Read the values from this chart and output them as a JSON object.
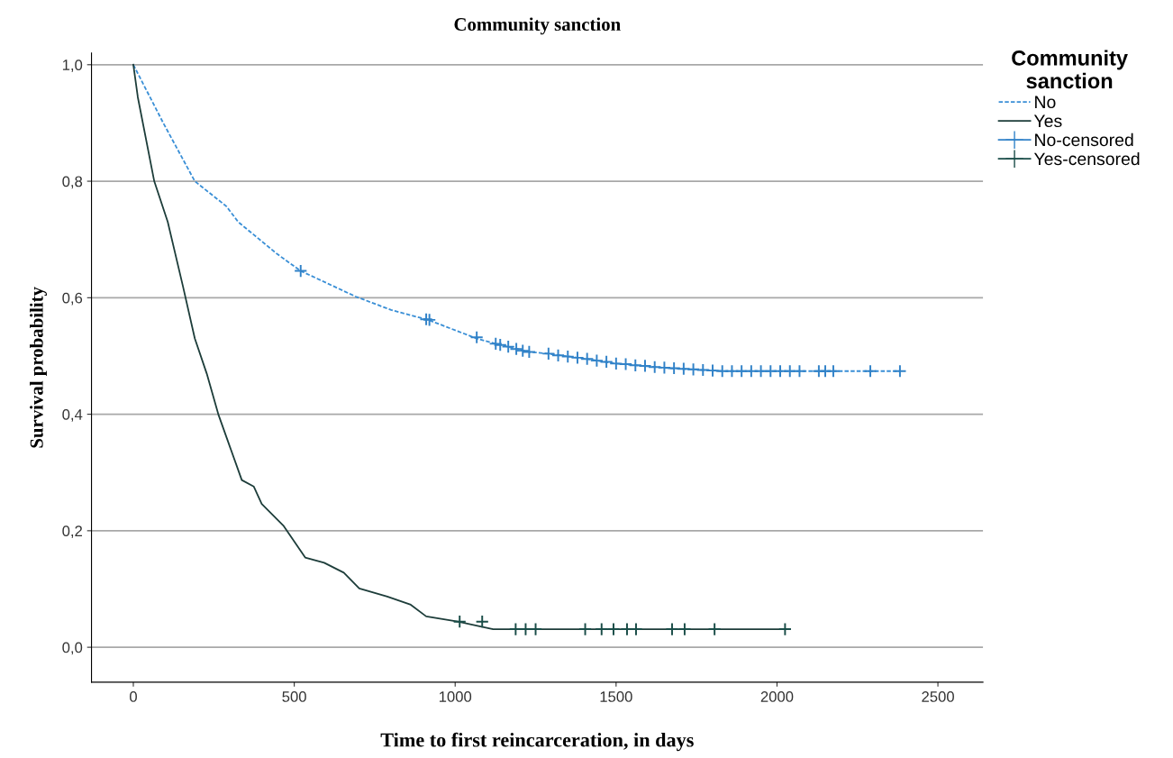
{
  "chart_data": {
    "type": "line",
    "title": "Community sanction",
    "xlabel": "Time to first reincarceration, in days",
    "ylabel": "Survival probability",
    "legend_title": "Community sanction",
    "legend": "top right",
    "grid": "y",
    "xlim": [
      -130,
      2640
    ],
    "ylim": [
      -0.06,
      1.02
    ],
    "xticks": [
      0,
      500,
      1000,
      1500,
      2000,
      2500
    ],
    "yticks": [
      {
        "value": 0.0,
        "label": "0,0"
      },
      {
        "value": 0.2,
        "label": "0,2"
      },
      {
        "value": 0.4,
        "label": "0,4"
      },
      {
        "value": 0.6,
        "label": "0,6"
      },
      {
        "value": 0.8,
        "label": "0,8"
      },
      {
        "value": 1.0,
        "label": "1,0"
      }
    ],
    "series": [
      {
        "name": "No",
        "color": "#3a8fd6",
        "line_style": "dashed",
        "marker": "none",
        "x": [
          0,
          93,
          191,
          289,
          326,
          447,
          520,
          691,
          801,
          916,
          1067,
          1126,
          1230,
          1289,
          1407,
          1500,
          1666,
          1840,
          2087,
          2382
        ],
        "values": [
          1.0,
          0.9,
          0.8,
          0.757,
          0.73,
          0.675,
          0.646,
          0.602,
          0.579,
          0.562,
          0.53,
          0.521,
          0.507,
          0.504,
          0.495,
          0.487,
          0.479,
          0.474,
          0.474,
          0.474
        ]
      },
      {
        "name": "Yes",
        "color": "#1d3d3a",
        "line_style": "solid",
        "marker": "none",
        "x": [
          0,
          14,
          65,
          107,
          154,
          191,
          228,
          264,
          337,
          374,
          399,
          466,
          534,
          593,
          654,
          702,
          789,
          862,
          910,
          1008,
          1118,
          2025
        ],
        "values": [
          1.0,
          0.944,
          0.8,
          0.73,
          0.62,
          0.53,
          0.47,
          0.4,
          0.287,
          0.276,
          0.246,
          0.209,
          0.154,
          0.145,
          0.128,
          0.101,
          0.087,
          0.073,
          0.053,
          0.044,
          0.031,
          0.031
        ]
      },
      {
        "name": "No-censored",
        "type": "scatter",
        "color": "#3182c8",
        "marker": "cross",
        "x": [
          520,
          910,
          920,
          1067,
          1126,
          1140,
          1165,
          1190,
          1210,
          1230,
          1290,
          1320,
          1350,
          1380,
          1410,
          1440,
          1470,
          1500,
          1530,
          1560,
          1590,
          1620,
          1650,
          1680,
          1710,
          1740,
          1770,
          1800,
          1830,
          1860,
          1890,
          1920,
          1950,
          1980,
          2010,
          2040,
          2070,
          2130,
          2150,
          2175,
          2290,
          2382
        ],
        "values": [
          0.646,
          0.563,
          0.562,
          0.532,
          0.521,
          0.519,
          0.516,
          0.512,
          0.509,
          0.507,
          0.504,
          0.501,
          0.499,
          0.497,
          0.495,
          0.492,
          0.49,
          0.487,
          0.486,
          0.484,
          0.483,
          0.481,
          0.48,
          0.479,
          0.478,
          0.477,
          0.476,
          0.475,
          0.474,
          0.474,
          0.474,
          0.474,
          0.474,
          0.474,
          0.474,
          0.474,
          0.474,
          0.474,
          0.474,
          0.474,
          0.474,
          0.474
        ]
      },
      {
        "name": "Yes-censored",
        "type": "scatter",
        "color": "#1a4d48",
        "marker": "cross",
        "x": [
          1014,
          1084,
          1188,
          1219,
          1250,
          1404,
          1455,
          1492,
          1534,
          1562,
          1674,
          1713,
          1806,
          2025
        ],
        "values": [
          0.044,
          0.044,
          0.031,
          0.031,
          0.031,
          0.031,
          0.031,
          0.031,
          0.031,
          0.031,
          0.031,
          0.031,
          0.031,
          0.031
        ]
      }
    ]
  }
}
